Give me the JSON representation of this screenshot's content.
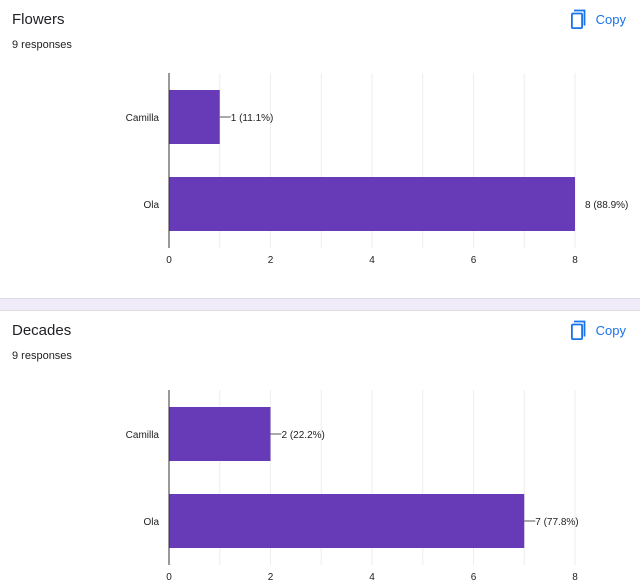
{
  "accent_color": "#673ab7",
  "link_color": "#1a73e8",
  "questions": [
    {
      "title": "Flowers",
      "responses": "9 responses",
      "copy_label": "Copy",
      "copy_icon": "copy-icon"
    },
    {
      "title": "Decades",
      "responses": "9 responses",
      "copy_label": "Copy",
      "copy_icon": "copy-icon"
    }
  ],
  "chart_data": [
    {
      "type": "bar",
      "orientation": "horizontal",
      "categories": [
        "Camilla",
        "Ola"
      ],
      "values": [
        1,
        8
      ],
      "value_labels": [
        "1 (11.1%)",
        "8 (88.9%)"
      ],
      "xlim": [
        0,
        8
      ],
      "xticks": [
        "0",
        "2",
        "4",
        "6",
        "8"
      ],
      "grid": true,
      "color": "#673ab7"
    },
    {
      "type": "bar",
      "orientation": "horizontal",
      "categories": [
        "Camilla",
        "Ola"
      ],
      "values": [
        2,
        7
      ],
      "value_labels": [
        "2 (22.2%)",
        "7 (77.8%)"
      ],
      "xlim": [
        0,
        8
      ],
      "xticks": [
        "0",
        "2",
        "4",
        "6",
        "8"
      ],
      "grid": true,
      "color": "#673ab7"
    }
  ]
}
